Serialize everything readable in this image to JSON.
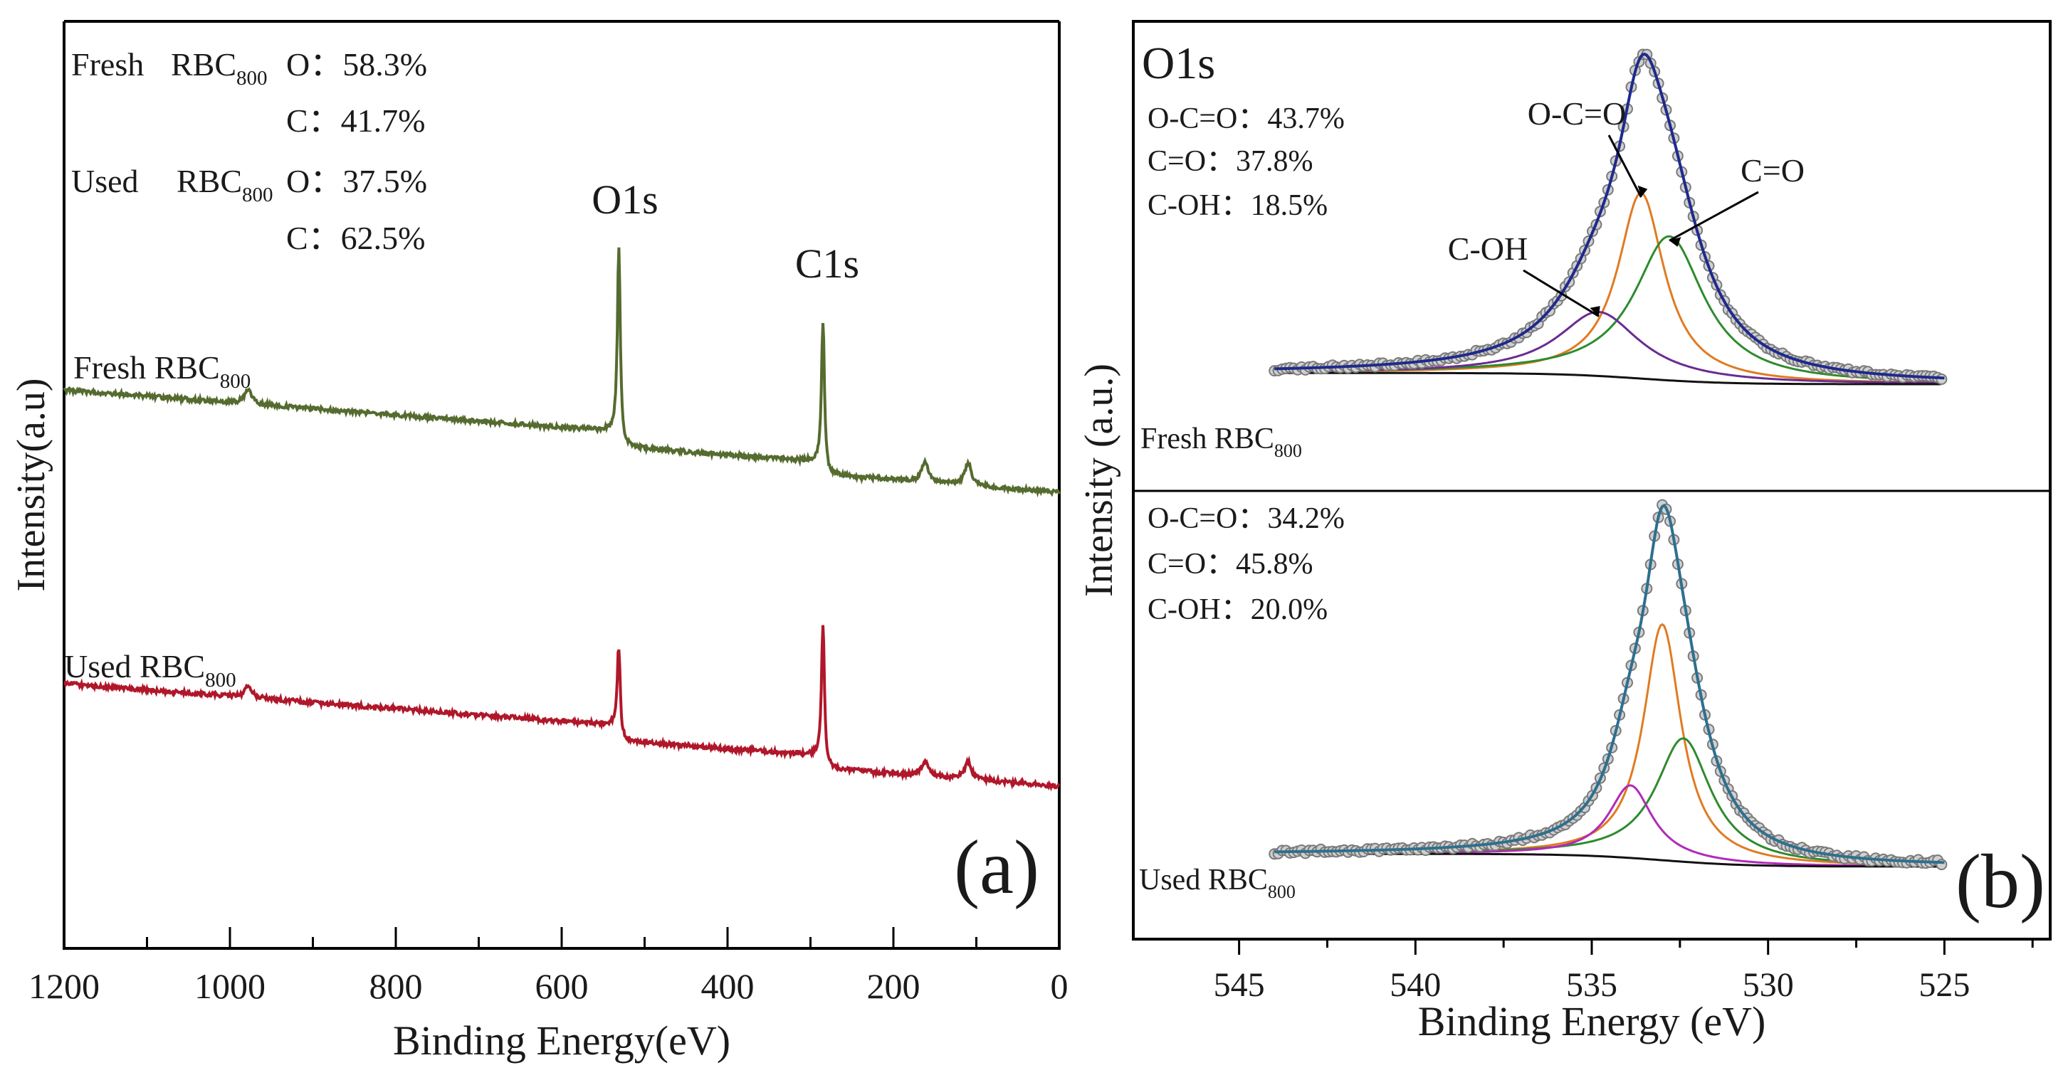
{
  "chart_data": [
    {
      "type": "line",
      "panel_label": "(a)",
      "xlabel": "Binding Energy(eV)",
      "ylabel": "Intensity(a.u)",
      "xlim": [
        1200,
        0
      ],
      "xticks": [
        "1200",
        "1000",
        "800",
        "600",
        "400",
        "200",
        "0"
      ],
      "composition": [
        {
          "sample": "Fresh",
          "material": "RBC",
          "sub": "800",
          "element": "O",
          "value": "58.3%"
        },
        {
          "sample": "",
          "material": "",
          "sub": "",
          "element": "C",
          "value": "41.7%"
        },
        {
          "sample": "Used",
          "material": "RBC",
          "sub": "800",
          "element": "O",
          "value": "37.5%"
        },
        {
          "sample": "",
          "material": "",
          "sub": "",
          "element": "C",
          "value": "62.5%"
        }
      ],
      "annotations": [
        "O1s",
        "C1s"
      ],
      "series": [
        {
          "name": "Fresh",
          "material": "RBC",
          "sub": "800",
          "color": "#556b2f",
          "baseline_left": 0.26,
          "baseline_right": 0.02,
          "peaks": [
            {
              "energy": 978,
              "height": 0.06
            },
            {
              "energy": 531,
              "height": 0.8
            },
            {
              "energy": 284.8,
              "height": 0.62
            },
            {
              "energy": 162,
              "height": 0.08
            },
            {
              "energy": 110,
              "height": 0.09
            }
          ]
        },
        {
          "name": "Used",
          "material": "RBC",
          "sub": "800",
          "color": "#b0172a",
          "baseline_left": 0.26,
          "baseline_right": 0.01,
          "peaks": [
            {
              "energy": 978,
              "height": 0.05
            },
            {
              "energy": 531,
              "height": 0.36
            },
            {
              "energy": 284.8,
              "height": 0.58
            },
            {
              "energy": 162,
              "height": 0.06
            },
            {
              "energy": 110,
              "height": 0.07
            }
          ]
        }
      ]
    },
    {
      "type": "line",
      "panel_label": "(b)",
      "title": "O1s",
      "xlabel": "Binding Energy (eV)",
      "ylabel": "Intensity (a.u.)",
      "xlim": [
        548,
        522
      ],
      "xticks": [
        "545",
        "540",
        "535",
        "530",
        "525"
      ],
      "panels": [
        {
          "sample": "Fresh",
          "material": "RBC",
          "sub": "800",
          "stats": [
            {
              "label": "O-C=O",
              "value": "43.7%"
            },
            {
              "label": "C=O",
              "value": "37.8%"
            },
            {
              "label": "C-OH",
              "value": "18.5%"
            }
          ],
          "peak_labels": [
            "O-C=O",
            "C=O",
            "C-OH"
          ],
          "range": [
            544,
            525
          ],
          "components": [
            {
              "name": "O-C=O",
              "center": 533.6,
              "fwhm": 1.6,
              "height": 0.58,
              "color": "#e07b22"
            },
            {
              "name": "C=O",
              "center": 532.8,
              "fwhm": 2.4,
              "height": 0.45,
              "color": "#2e8b2e"
            },
            {
              "name": "C-OH",
              "center": 534.8,
              "fwhm": 2.8,
              "height": 0.2,
              "color": "#6a2c91"
            }
          ],
          "envelope_color": "#1f2a8c"
        },
        {
          "sample": "Used",
          "material": "RBC",
          "sub": "800",
          "stats": [
            {
              "label": "O-C=O",
              "value": "34.2%"
            },
            {
              "label": "C=O",
              "value": "45.8%"
            },
            {
              "label": "C-OH",
              "value": "20.0%"
            }
          ],
          "peak_labels": [],
          "range": [
            544,
            525
          ],
          "components": [
            {
              "name": "O-C=O",
              "center": 533.0,
              "fwhm": 1.3,
              "height": 0.65,
              "color": "#e07b22"
            },
            {
              "name": "C=O",
              "center": 532.4,
              "fwhm": 1.9,
              "height": 0.34,
              "color": "#2e8b2e"
            },
            {
              "name": "C-OH",
              "center": 533.9,
              "fwhm": 1.5,
              "height": 0.2,
              "color": "#b02bb8"
            }
          ],
          "envelope_color": "#2e6f8e"
        }
      ]
    }
  ]
}
